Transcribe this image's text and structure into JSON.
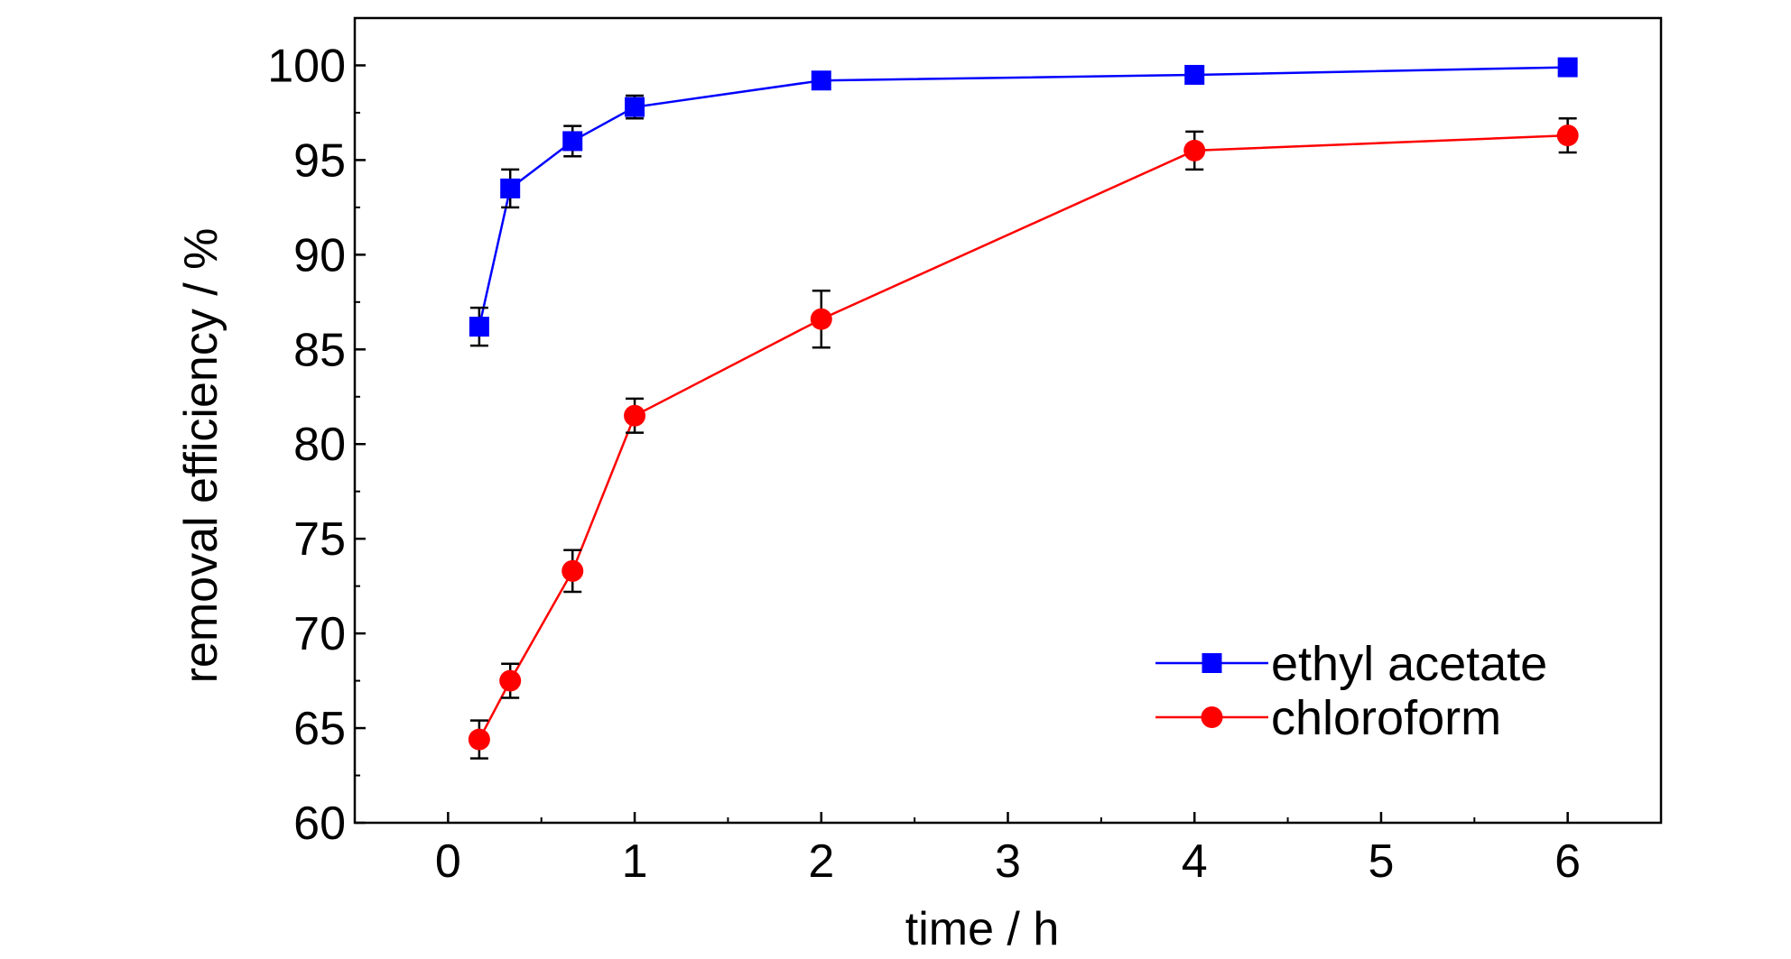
{
  "chart_data": {
    "type": "line",
    "title": "",
    "xlabel": "time / h",
    "ylabel": "removal efficiency / %",
    "xlim": [
      -0.5,
      6.5
    ],
    "ylim": [
      60,
      102.5
    ],
    "xticks": [
      0,
      1,
      2,
      3,
      4,
      5,
      6
    ],
    "yticks": [
      60,
      65,
      70,
      75,
      80,
      85,
      90,
      95,
      100
    ],
    "grid": false,
    "legend_position": "bottom-right",
    "series": [
      {
        "name": "ethyl acetate",
        "color": "#0000ff",
        "marker": "square",
        "x": [
          0.167,
          0.333,
          0.667,
          1,
          2,
          4,
          6
        ],
        "y": [
          86.2,
          93.5,
          96.0,
          97.8,
          99.2,
          99.5,
          99.9
        ],
        "err": [
          1.0,
          1.0,
          0.8,
          0.6,
          0.4,
          0.4,
          0.3
        ]
      },
      {
        "name": "chloroform",
        "color": "#ff0000",
        "marker": "circle",
        "x": [
          0.167,
          0.333,
          0.667,
          1,
          2,
          4,
          6
        ],
        "y": [
          64.4,
          67.5,
          73.3,
          81.5,
          86.6,
          95.5,
          96.3
        ],
        "err": [
          1.0,
          0.9,
          1.1,
          0.9,
          1.5,
          1.0,
          0.9
        ]
      }
    ]
  }
}
